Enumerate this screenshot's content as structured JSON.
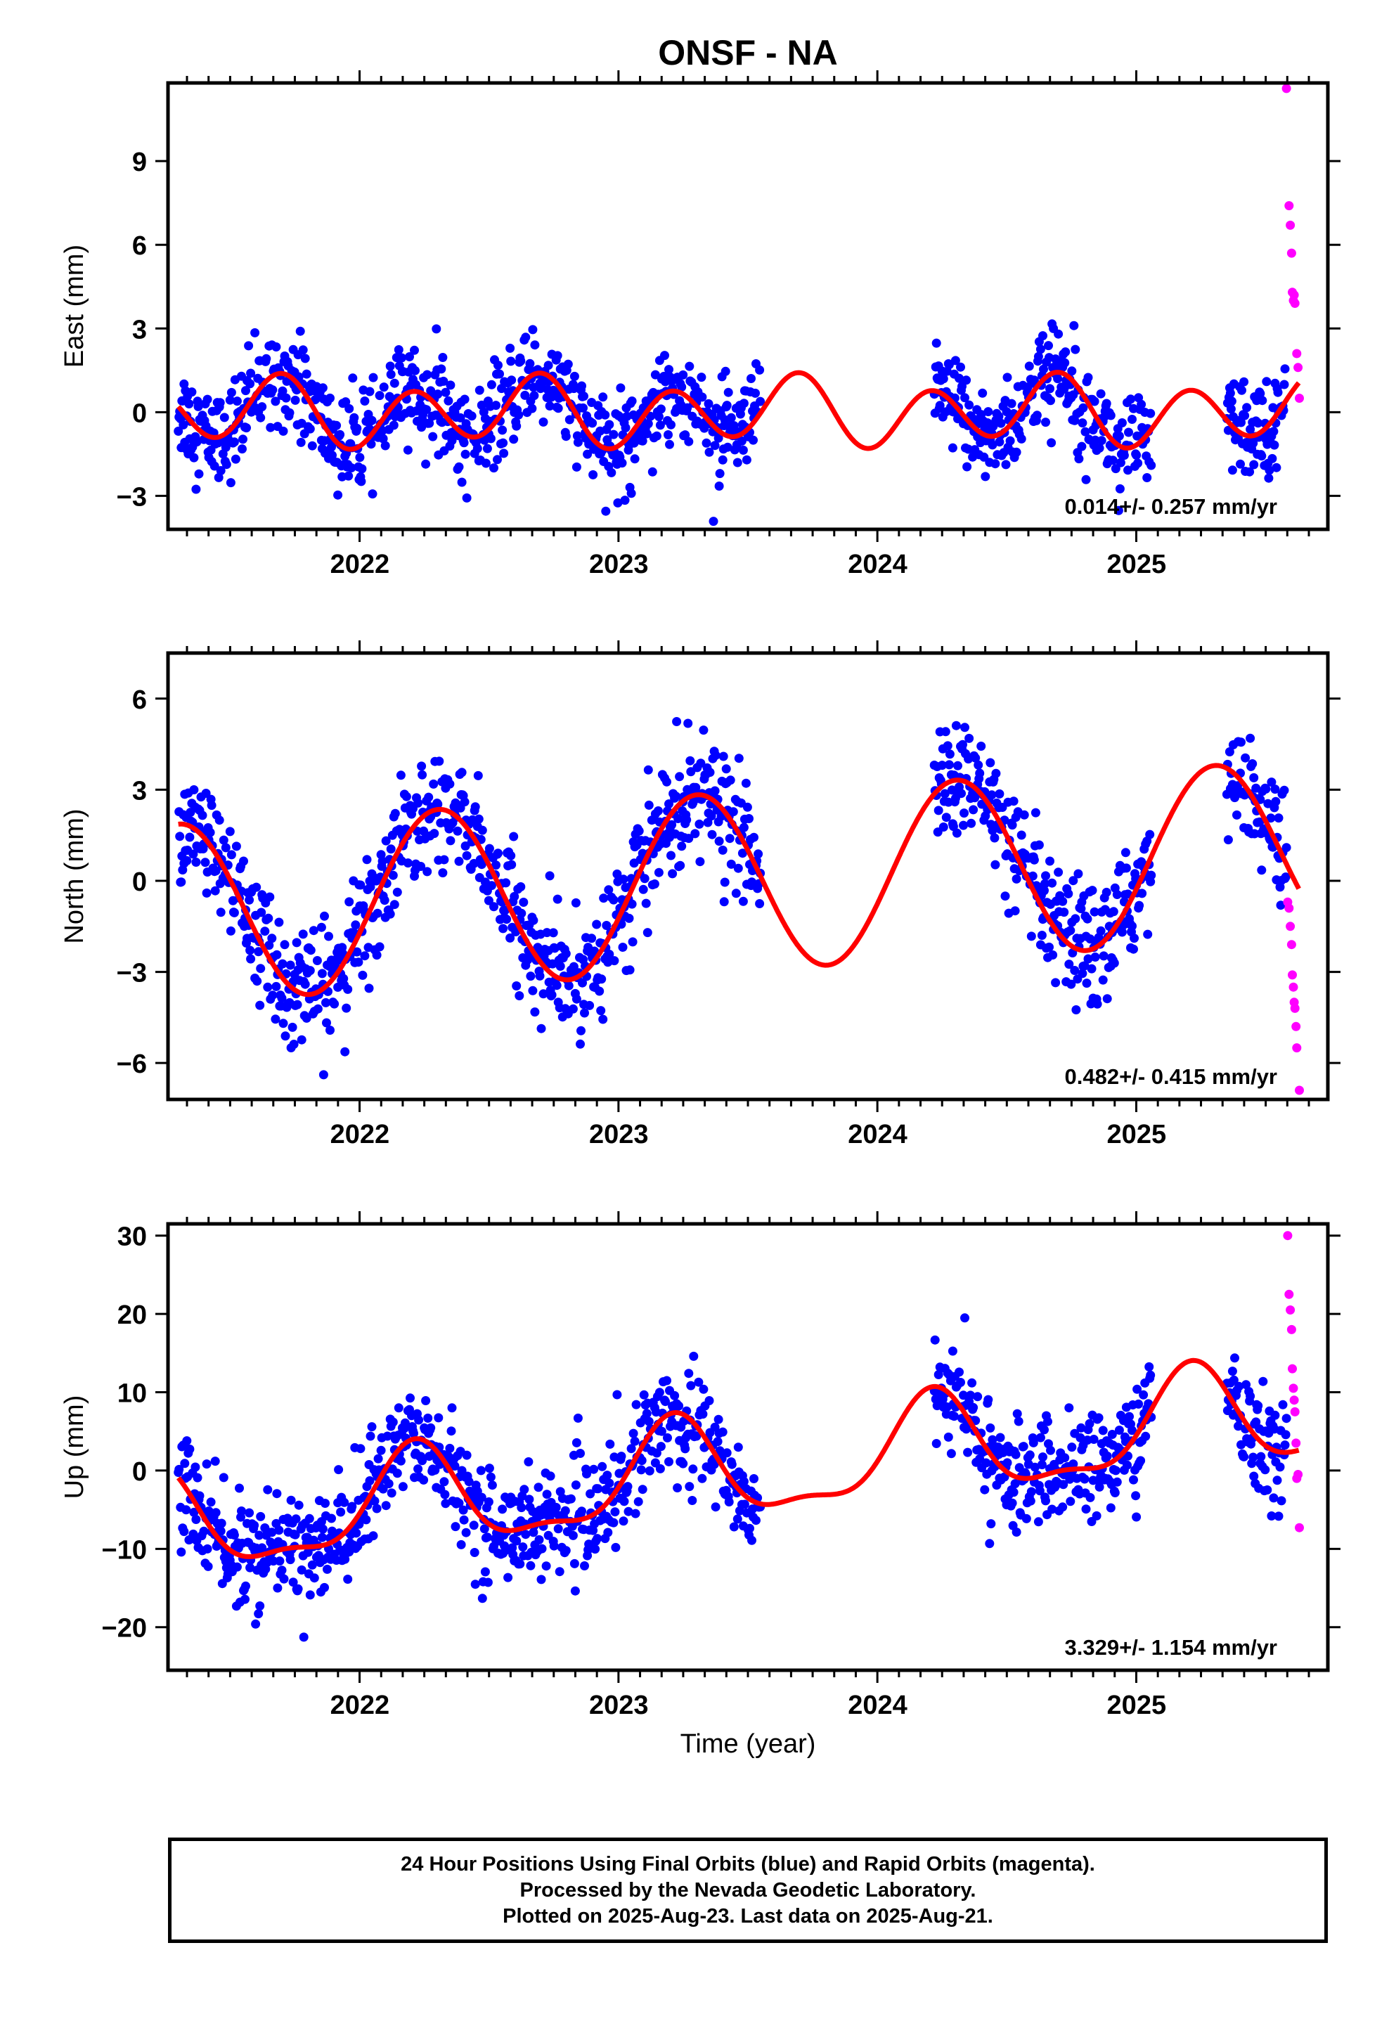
{
  "chart_data": {
    "type": "scatter",
    "title": "ONSF - NA",
    "xlabel": "Time (year)",
    "x_ticks": [
      "2022",
      "2023",
      "2024",
      "2025"
    ],
    "x_range": [
      2021.26,
      2025.74
    ],
    "colors": {
      "final": "#0000ff",
      "rapid": "#ff00ff",
      "model": "#ff0000"
    },
    "panels": [
      {
        "ylabel": "East (mm)",
        "ylim": [
          -4.2,
          11.8
        ],
        "yticks": [
          "−3",
          "0",
          "3",
          "6",
          "9"
        ],
        "ytick_values": [
          -3,
          0,
          3,
          6,
          9
        ],
        "rate_label": "0.014+/- 0.257 mm/yr",
        "model": {
          "offset": 0,
          "trend": 0.014,
          "c1": -0.3,
          "s1": -0.25,
          "c2": -0.9,
          "s2": 0.6
        },
        "noise_sd": 0.85,
        "rapid_points": [
          [
            2025.58,
            11.6
          ],
          [
            2025.59,
            7.4
          ],
          [
            2025.595,
            6.7
          ],
          [
            2025.6,
            5.7
          ],
          [
            2025.603,
            4.3
          ],
          [
            2025.607,
            4.0
          ],
          [
            2025.61,
            4.2
          ],
          [
            2025.613,
            3.9
          ],
          [
            2025.62,
            2.1
          ],
          [
            2025.625,
            1.6
          ],
          [
            2025.63,
            0.5
          ]
        ]
      },
      {
        "ylabel": "North (mm)",
        "ylim": [
          -7.2,
          7.5
        ],
        "yticks": [
          "−6",
          "−3",
          "0",
          "3",
          "6"
        ],
        "ytick_values": [
          -6,
          -3,
          0,
          3,
          6
        ],
        "rate_label": "0.482+/- 0.415 mm/yr",
        "model": {
          "offset": 0,
          "trend": 0.482,
          "c1": -1.0,
          "s1": 2.75,
          "c2": 0,
          "s2": 0
        },
        "noise_sd": 0.95,
        "rapid_points": [
          [
            2025.585,
            -0.7
          ],
          [
            2025.59,
            -0.9
          ],
          [
            2025.595,
            -1.5
          ],
          [
            2025.6,
            -2.1
          ],
          [
            2025.603,
            -3.1
          ],
          [
            2025.607,
            -3.5
          ],
          [
            2025.61,
            -4.0
          ],
          [
            2025.613,
            -4.2
          ],
          [
            2025.617,
            -4.8
          ],
          [
            2025.62,
            -5.5
          ],
          [
            2025.63,
            -6.9
          ]
        ]
      },
      {
        "ylabel": "Up (mm)",
        "ylim": [
          -25.5,
          31.5
        ],
        "yticks": [
          "−20",
          "−10",
          "0",
          "10",
          "20",
          "30"
        ],
        "ytick_values": [
          -20,
          -10,
          0,
          10,
          20,
          30
        ],
        "rate_label": "3.329+/- 1.154 mm/yr",
        "model": {
          "offset": 0,
          "trend": 3.329,
          "c1": 1.5,
          "s1": 6.0,
          "c2": -2.0,
          "s2": 0.8
        },
        "noise_sd": 3.4,
        "rapid_points": [
          [
            2025.585,
            30.0
          ],
          [
            2025.59,
            22.5
          ],
          [
            2025.595,
            20.5
          ],
          [
            2025.6,
            18.0
          ],
          [
            2025.603,
            13.0
          ],
          [
            2025.607,
            10.5
          ],
          [
            2025.61,
            9.0
          ],
          [
            2025.613,
            7.5
          ],
          [
            2025.617,
            3.5
          ],
          [
            2025.62,
            -1.0
          ],
          [
            2025.625,
            -0.5
          ],
          [
            2025.63,
            -7.3
          ]
        ]
      }
    ],
    "data_segments": [
      [
        2021.3,
        2023.55
      ],
      [
        2024.22,
        2025.06
      ],
      [
        2025.35,
        2025.58
      ]
    ]
  },
  "caption": {
    "line1": "24 Hour Positions Using Final Orbits (blue) and Rapid Orbits (magenta).",
    "line2": "Processed by the Nevada Geodetic Laboratory.",
    "line3": "Plotted on 2025-Aug-23. Last data on 2025-Aug-21."
  }
}
